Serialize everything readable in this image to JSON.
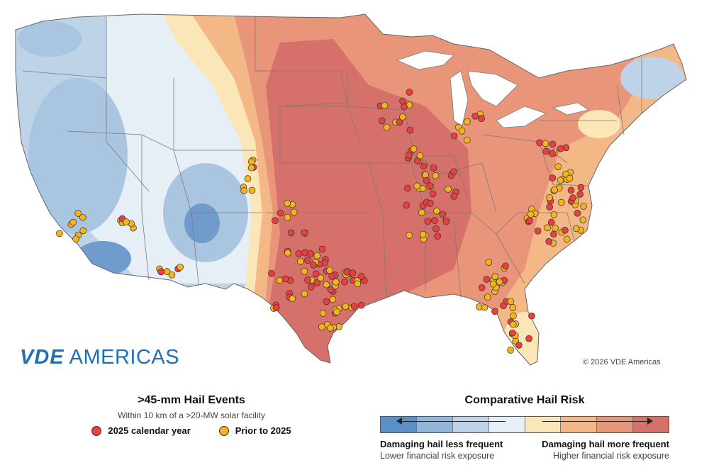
{
  "brand": {
    "part1": "VDE",
    "part2": "AMERICAS",
    "color": "#1f6fb4"
  },
  "copyright": "© 2026 VDE Americas",
  "events_legend": {
    "title": ">45-mm Hail Events",
    "subtitle": "Within 10 km of a >20-MW solar facility",
    "items": [
      {
        "label": "2025 calendar year",
        "color": "#e8403f"
      },
      {
        "label": "Prior to 2025",
        "color": "#f4b41a"
      }
    ]
  },
  "risk_legend": {
    "title": "Comparative Hail Risk",
    "scale_colors": [
      "#5b8fc8",
      "#92b6da",
      "#bed3e8",
      "#e6eff6",
      "#fbe6b8",
      "#f4b886",
      "#e9957a",
      "#d6706a"
    ],
    "less_label": "Damaging hail less frequent",
    "less_sub": "Lower financial risk exposure",
    "more_label": "Damaging hail more frequent",
    "more_sub": "Higher financial risk exposure"
  },
  "map_colors": {
    "water": "#ffffff",
    "border": "#7a7a7a",
    "risk_low": "#a9c5e0",
    "risk_very_low": "#6f9ccc",
    "risk_mid": "#e6eff6",
    "risk_high": "#f2b98a",
    "risk_very_high": "#d76e68"
  }
}
